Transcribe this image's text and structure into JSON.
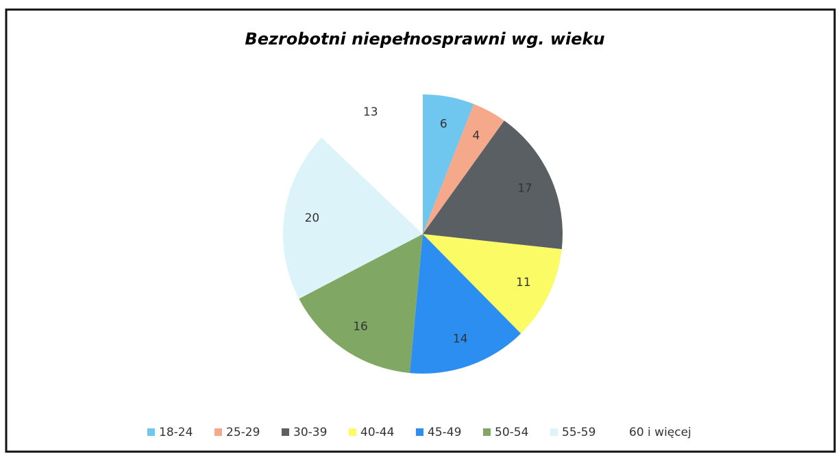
{
  "chart_data": {
    "type": "pie",
    "title": "Bezrobotni niepełnosprawni  wg. wieku",
    "categories": [
      "18-24",
      "25-29",
      "30-39",
      "40-44",
      "45-49",
      "50-54",
      "55-59",
      "60 i więcej"
    ],
    "values": [
      6,
      4,
      17,
      11,
      14,
      16,
      20,
      13
    ],
    "colors": [
      "#6fc6ee",
      "#f5a98a",
      "#5a5f63",
      "#fbfb66",
      "#2b8ef0",
      "#80a864",
      "#dcf3fa",
      "#ffffff"
    ],
    "legend": "bottom"
  }
}
